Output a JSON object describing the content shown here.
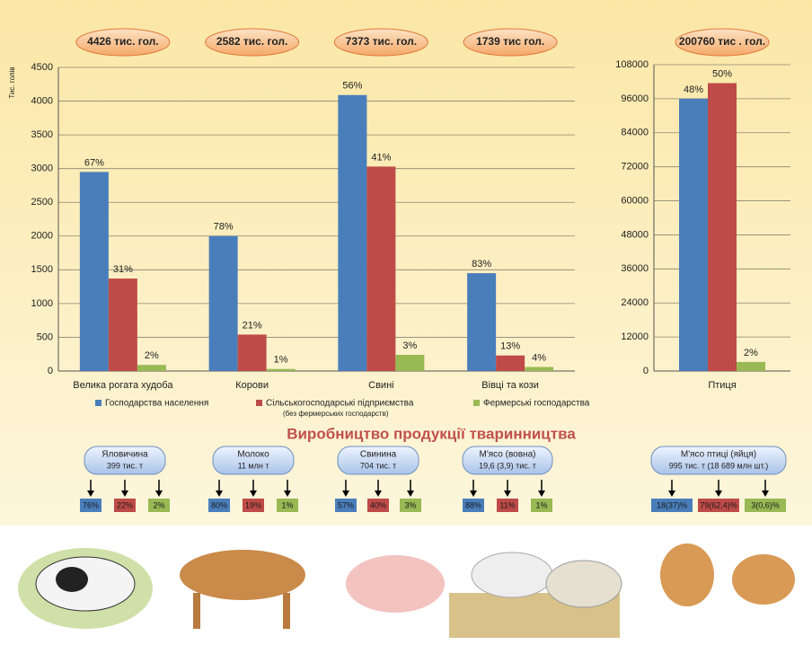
{
  "chart_data": [
    {
      "type": "bar",
      "ylabel": "Тис. голів",
      "categories": [
        "Велика рогата худоба",
        "Корови",
        "Свині",
        "Вівці та кози"
      ],
      "totals": [
        "4426 тис. гол.",
        "2582 тис. гол.",
        "7373 тис. гол.",
        "1739 тис гол."
      ],
      "series": [
        {
          "name": "Господарства населення",
          "color": "#4a7ebb",
          "values": [
            2950,
            2000,
            4090,
            1450
          ],
          "shares": [
            "67%",
            "78%",
            "56%",
            "83%"
          ]
        },
        {
          "name": "Сільськогосподарські підприємства",
          "note": "(без фермерських господарств)",
          "color": "#be4b48",
          "values": [
            1370,
            540,
            3030,
            230
          ],
          "shares": [
            "31%",
            "21%",
            "41%",
            "13%"
          ]
        },
        {
          "name": "Фермерські господарства",
          "color": "#98b954",
          "values": [
            90,
            30,
            240,
            60
          ],
          "shares": [
            "2%",
            "1%",
            "3%",
            "4%"
          ]
        }
      ],
      "ylim": [
        0,
        4500
      ],
      "yticks": [
        0,
        500,
        1000,
        1500,
        2000,
        2500,
        3000,
        3500,
        4000,
        4500
      ],
      "grid": true
    },
    {
      "type": "bar",
      "categories": [
        "Птиця"
      ],
      "totals": [
        "200760 тис . гол."
      ],
      "series": [
        {
          "color": "#4a7ebb",
          "values": [
            96000
          ],
          "shares": [
            "48%"
          ]
        },
        {
          "color": "#be4b48",
          "values": [
            101500
          ],
          "shares": [
            "50%"
          ]
        },
        {
          "color": "#98b954",
          "values": [
            3200
          ],
          "shares": [
            "2%"
          ]
        }
      ],
      "ylim": [
        0,
        108000
      ],
      "yticks": [
        0,
        12000,
        24000,
        36000,
        48000,
        60000,
        72000,
        84000,
        96000,
        108000
      ],
      "grid": true
    }
  ],
  "production": {
    "title": "Виробництво продукції тваринництва",
    "items": [
      {
        "name": "Яловичина",
        "amount": "399 тис. т",
        "shares": [
          "76%",
          "22%",
          "2%"
        ]
      },
      {
        "name": "Молоко",
        "amount": "11 млн т",
        "shares": [
          "80%",
          "19%",
          "1%"
        ]
      },
      {
        "name": "Свинина",
        "amount": "704 тис. т",
        "shares": [
          "57%",
          "40%",
          "3%"
        ]
      },
      {
        "name": "М'ясо (вовна)",
        "amount": "19,6 (3,9) тис. т",
        "shares": [
          "88%",
          "11%",
          "1%"
        ]
      },
      {
        "name": "М'ясо птиці (яйця)",
        "amount": "995 тис. т (18 689 млн шт.)",
        "shares": [
          "18(37)%",
          "79(62,4)%",
          "3(0,6)%"
        ]
      }
    ]
  }
}
